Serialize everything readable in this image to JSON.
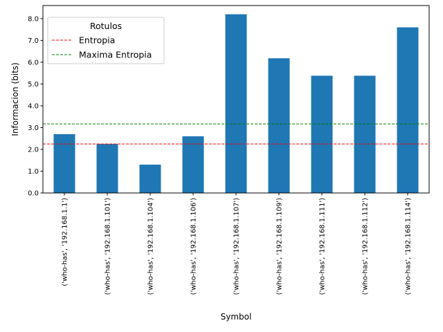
{
  "chart_data": {
    "type": "bar",
    "xlabel": "Symbol",
    "ylabel": "Informacion (bits)",
    "ylim": [
      0,
      8.6
    ],
    "yticks": [
      "0.0",
      "1.0",
      "2.0",
      "3.0",
      "4.0",
      "5.0",
      "6.0",
      "7.0",
      "8.0"
    ],
    "categories": [
      "('who-has', '192.168.1.1')",
      "('who-has', '192.168.1.101')",
      "('who-has', '192.168.1.104')",
      "('who-has', '192.168.1.106')",
      "('who-has', '192.168.1.107')",
      "('who-has', '192.168.1.109')",
      "('who-has', '192.168.1.111')",
      "('who-has', '192.168.1.112')",
      "('who-has', '192.168.1.114')"
    ],
    "values": [
      2.7,
      2.25,
      1.3,
      2.6,
      8.2,
      6.18,
      5.38,
      5.38,
      7.6
    ],
    "bar_color": "#1f77b4",
    "hlines": [
      {
        "name": "Entropia",
        "value": 2.25,
        "color": "#ff0000",
        "style": "dashed"
      },
      {
        "name": "Maxima Entropia",
        "value": 3.17,
        "color": "#008000",
        "style": "dashed"
      }
    ],
    "legend": {
      "title": "Rotulos",
      "placement": "top-left",
      "entries": [
        "Entropia",
        "Maxima Entropia"
      ]
    },
    "grid": false
  }
}
